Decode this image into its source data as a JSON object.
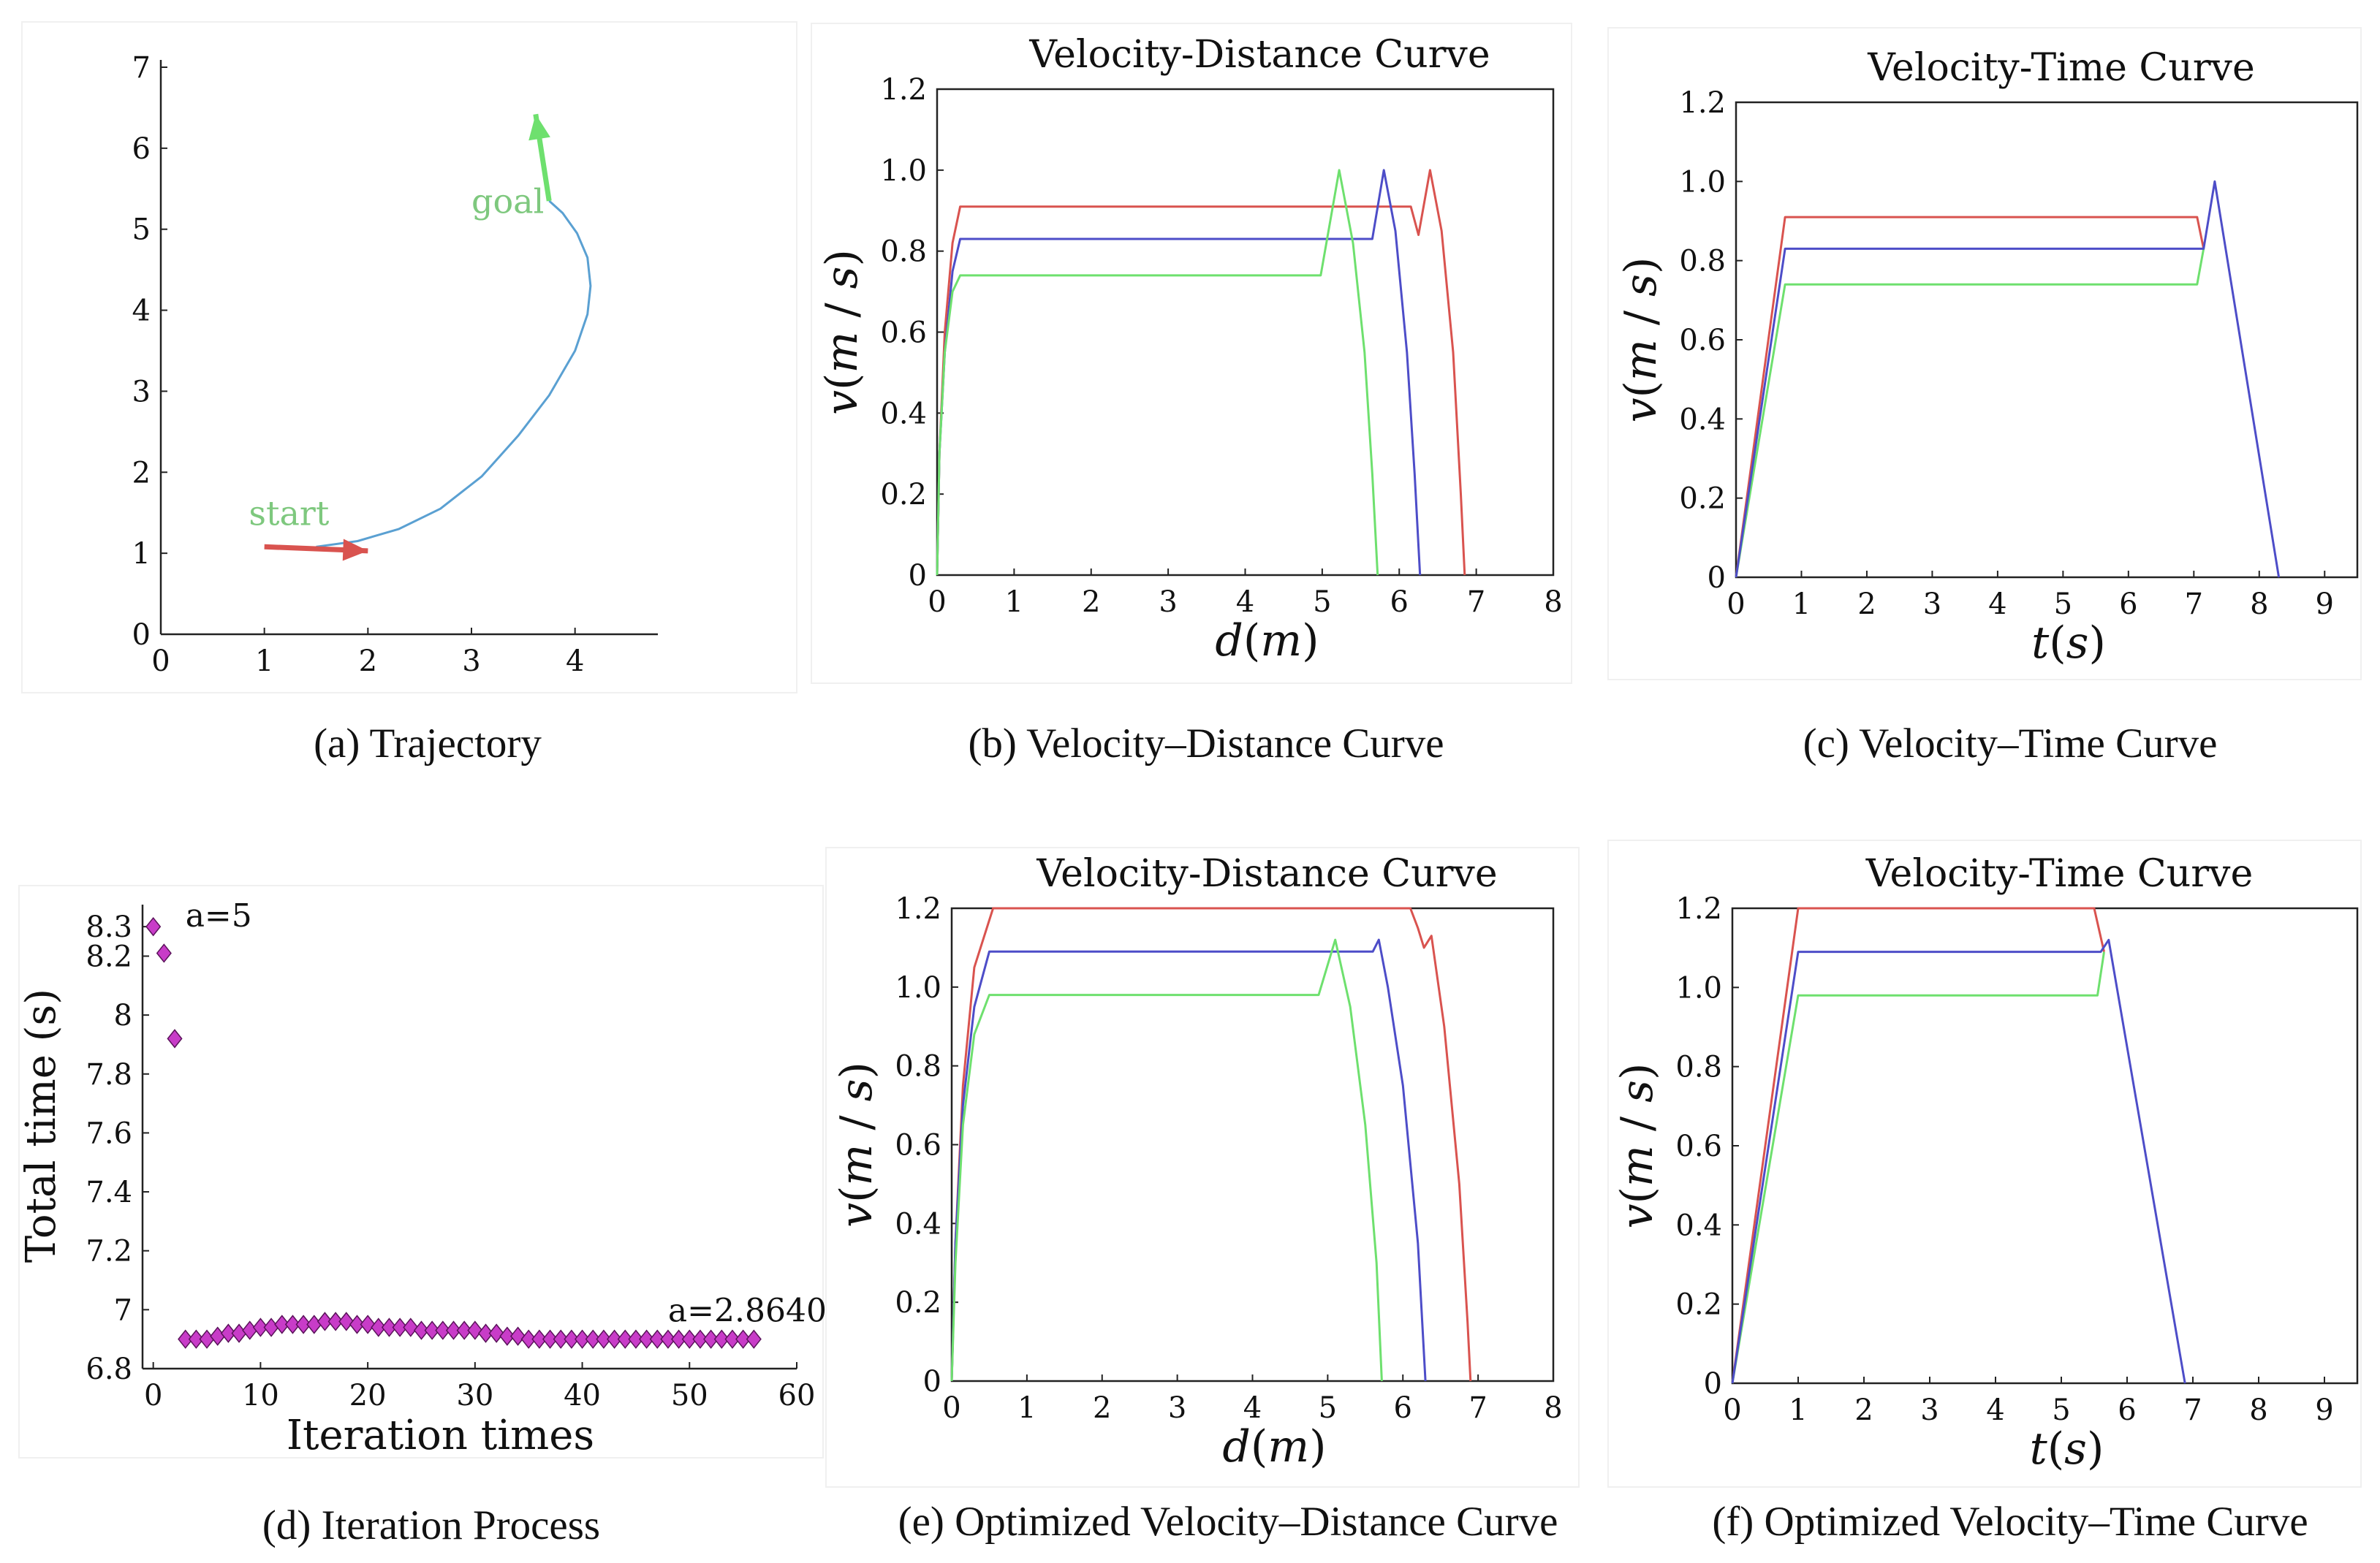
{
  "captions": {
    "a": "(a) Trajectory",
    "b": "(b) Velocity–Distance Curve",
    "c": "(c) Velocity–Time Curve",
    "d": "(d) Iteration Process",
    "e": "(e) Optimized Velocity–Distance Curve",
    "f": "(f) Optimized Velocity–Time Curve"
  },
  "colors": {
    "red": "#d9534f",
    "blue": "#4d4dc8",
    "green": "#6ee06e",
    "path": "#5aa0d2",
    "marker": "#c83cc8",
    "start": "#7ec87e"
  },
  "chart_data": [
    {
      "id": "a",
      "type": "line",
      "title": "",
      "xlim": [
        0,
        4.8
      ],
      "ylim": [
        0,
        7
      ],
      "xticks": [
        0,
        1,
        2,
        3,
        4
      ],
      "yticks": [
        0,
        1,
        2,
        3,
        4,
        5,
        6,
        7
      ],
      "xlabel": "",
      "ylabel": "",
      "annotations": [
        {
          "text": "start",
          "x": 0.85,
          "y": 1.35
        },
        {
          "text": "goal",
          "x": 3.0,
          "y": 5.2
        }
      ],
      "series": [
        {
          "name": "trajectory",
          "color": "path",
          "x": [
            1.5,
            1.9,
            2.3,
            2.7,
            3.1,
            3.45,
            3.75,
            4.0,
            4.12,
            4.15,
            4.12,
            4.02,
            3.88,
            3.75
          ],
          "y": [
            1.08,
            1.15,
            1.3,
            1.55,
            1.95,
            2.45,
            2.95,
            3.5,
            3.95,
            4.3,
            4.65,
            4.95,
            5.2,
            5.35
          ]
        }
      ],
      "arrows": [
        {
          "name": "start-arrow",
          "color": "red",
          "x": [
            1.0,
            2.0
          ],
          "y": [
            1.08,
            1.03
          ]
        },
        {
          "name": "goal-arrow",
          "color": "green",
          "x": [
            3.75,
            3.62
          ],
          "y": [
            5.35,
            6.42
          ]
        }
      ]
    },
    {
      "id": "b",
      "type": "line",
      "title": "Velocity-Distance Curve",
      "xlim": [
        0,
        8
      ],
      "ylim": [
        0,
        1.2
      ],
      "xticks": [
        0,
        1,
        2,
        3,
        4,
        5,
        6,
        7,
        8
      ],
      "yticks": [
        0,
        0.2,
        0.4,
        0.6,
        0.8,
        1.0,
        1.2
      ],
      "ytick_labels": [
        "0",
        "0.2",
        "0.4",
        "0.6",
        "0.8",
        "1.0",
        "1.2"
      ],
      "xlabel": "d(m)",
      "ylabel": "v(m / s)",
      "series": [
        {
          "name": "red",
          "color": "red",
          "x": [
            0,
            0.03,
            0.1,
            0.2,
            0.3,
            6.15,
            6.25,
            6.4,
            6.55,
            6.7,
            6.8,
            6.85
          ],
          "y": [
            0,
            0.3,
            0.6,
            0.82,
            0.91,
            0.91,
            0.84,
            1.0,
            0.85,
            0.55,
            0.2,
            0
          ]
        },
        {
          "name": "blue",
          "color": "blue",
          "x": [
            0,
            0.03,
            0.1,
            0.2,
            0.3,
            5.65,
            5.8,
            5.95,
            6.1,
            6.2,
            6.27
          ],
          "y": [
            0,
            0.3,
            0.55,
            0.75,
            0.83,
            0.83,
            1.0,
            0.85,
            0.55,
            0.25,
            0
          ]
        },
        {
          "name": "green",
          "color": "green",
          "x": [
            0,
            0.03,
            0.1,
            0.2,
            0.3,
            4.98,
            5.22,
            5.4,
            5.55,
            5.65,
            5.72
          ],
          "y": [
            0,
            0.3,
            0.55,
            0.7,
            0.74,
            0.74,
            1.0,
            0.82,
            0.55,
            0.25,
            0
          ]
        }
      ]
    },
    {
      "id": "c",
      "type": "line",
      "title": "Velocity-Time Curve",
      "xlim": [
        0,
        9.5
      ],
      "ylim": [
        0,
        1.2
      ],
      "xticks": [
        0,
        1,
        2,
        3,
        4,
        5,
        6,
        7,
        8,
        9
      ],
      "yticks": [
        0,
        0.2,
        0.4,
        0.6,
        0.8,
        1.0,
        1.2
      ],
      "ytick_labels": [
        "0",
        "0.2",
        "0.4",
        "0.6",
        "0.8",
        "1.0",
        "1.2"
      ],
      "xlabel": "t(s)",
      "ylabel": "v(m / s)",
      "series": [
        {
          "name": "red",
          "color": "red",
          "x": [
            0,
            0.75,
            7.05,
            7.15
          ],
          "y": [
            0,
            0.91,
            0.91,
            0.83
          ]
        },
        {
          "name": "green",
          "color": "green",
          "x": [
            0,
            0.75,
            7.05,
            7.15
          ],
          "y": [
            0,
            0.74,
            0.74,
            0.83
          ]
        },
        {
          "name": "blue",
          "color": "blue",
          "x": [
            0,
            0.75,
            7.15,
            7.32,
            8.3
          ],
          "y": [
            0,
            0.83,
            0.83,
            1.0,
            0
          ]
        }
      ]
    },
    {
      "id": "d",
      "type": "scatter",
      "title": "",
      "xlim": [
        -1,
        60
      ],
      "ylim": [
        6.8,
        8.35
      ],
      "xticks": [
        0,
        10,
        20,
        30,
        40,
        50,
        60
      ],
      "yticks": [
        6.8,
        7,
        7.2,
        7.4,
        7.6,
        7.8,
        8,
        8.2,
        8.3
      ],
      "ytick_labels": [
        "6.8",
        "7",
        "7.2",
        "7.4",
        "7.6",
        "7.8",
        "8",
        "8.2",
        "8.3"
      ],
      "xlabel": "Iteration times",
      "ylabel": "Total time (s)",
      "annotations": [
        {
          "text": "a=5",
          "x": 3,
          "y": 8.3
        },
        {
          "text": "a=2.8640",
          "x": 48,
          "y": 6.96
        }
      ],
      "x": [
        0,
        1,
        2,
        3,
        4,
        5,
        6,
        7,
        8,
        9,
        10,
        11,
        12,
        13,
        14,
        15,
        16,
        17,
        18,
        19,
        20,
        21,
        22,
        23,
        24,
        25,
        26,
        27,
        28,
        29,
        30,
        31,
        32,
        33,
        34,
        35,
        36,
        37,
        38,
        39,
        40,
        41,
        42,
        43,
        44,
        45,
        46,
        47,
        48,
        49,
        50,
        51,
        52,
        53,
        54,
        55,
        56
      ],
      "y": [
        8.3,
        8.21,
        7.92,
        6.9,
        6.9,
        6.9,
        6.91,
        6.92,
        6.92,
        6.93,
        6.94,
        6.94,
        6.95,
        6.95,
        6.95,
        6.95,
        6.96,
        6.96,
        6.96,
        6.95,
        6.95,
        6.94,
        6.94,
        6.94,
        6.94,
        6.93,
        6.93,
        6.93,
        6.93,
        6.93,
        6.93,
        6.92,
        6.92,
        6.91,
        6.91,
        6.9,
        6.9,
        6.9,
        6.9,
        6.9,
        6.9,
        6.9,
        6.9,
        6.9,
        6.9,
        6.9,
        6.9,
        6.9,
        6.9,
        6.9,
        6.9,
        6.9,
        6.9,
        6.9,
        6.9,
        6.9,
        6.9
      ]
    },
    {
      "id": "e",
      "type": "line",
      "title": "Velocity-Distance Curve",
      "xlim": [
        0,
        8
      ],
      "ylim": [
        0,
        1.2
      ],
      "xticks": [
        0,
        1,
        2,
        3,
        4,
        5,
        6,
        7,
        8
      ],
      "yticks": [
        0,
        0.2,
        0.4,
        0.6,
        0.8,
        1.0,
        1.2
      ],
      "ytick_labels": [
        "0",
        "0.2",
        "0.4",
        "0.6",
        "0.8",
        "1.0",
        "1.2"
      ],
      "xlabel": "d(m)",
      "ylabel": "v(m / s)",
      "series": [
        {
          "name": "red",
          "color": "red",
          "x": [
            0,
            0.05,
            0.15,
            0.3,
            0.55,
            6.1,
            6.2,
            6.28,
            6.38,
            6.55,
            6.75,
            6.86,
            6.9
          ],
          "y": [
            0,
            0.35,
            0.75,
            1.05,
            1.2,
            1.2,
            1.15,
            1.1,
            1.13,
            0.9,
            0.5,
            0.15,
            0
          ]
        },
        {
          "name": "blue",
          "color": "blue",
          "x": [
            0,
            0.05,
            0.15,
            0.3,
            0.5,
            5.6,
            5.68,
            5.8,
            6.0,
            6.2,
            6.3
          ],
          "y": [
            0,
            0.35,
            0.7,
            0.95,
            1.09,
            1.09,
            1.12,
            1.0,
            0.75,
            0.35,
            0
          ]
        },
        {
          "name": "green",
          "color": "green",
          "x": [
            0,
            0.05,
            0.15,
            0.3,
            0.5,
            4.88,
            5.1,
            5.3,
            5.5,
            5.65,
            5.72
          ],
          "y": [
            0,
            0.3,
            0.65,
            0.88,
            0.98,
            0.98,
            1.12,
            0.95,
            0.65,
            0.3,
            0
          ]
        }
      ]
    },
    {
      "id": "f",
      "type": "line",
      "title": "Velocity-Time Curve",
      "xlim": [
        0,
        9.5
      ],
      "ylim": [
        0,
        1.2
      ],
      "xticks": [
        0,
        1,
        2,
        3,
        4,
        5,
        6,
        7,
        8,
        9
      ],
      "yticks": [
        0,
        0.2,
        0.4,
        0.6,
        0.8,
        1.0,
        1.2
      ],
      "ytick_labels": [
        "0",
        "0.2",
        "0.4",
        "0.6",
        "0.8",
        "1.0",
        "1.2"
      ],
      "xlabel": "t(s)",
      "ylabel": "v(m / s)",
      "series": [
        {
          "name": "red",
          "color": "red",
          "x": [
            0,
            1.0,
            5.5,
            5.65
          ],
          "y": [
            0,
            1.2,
            1.2,
            1.09
          ]
        },
        {
          "name": "green",
          "color": "green",
          "x": [
            0,
            1.0,
            5.55,
            5.65
          ],
          "y": [
            0,
            0.98,
            0.98,
            1.09
          ]
        },
        {
          "name": "blue",
          "color": "blue",
          "x": [
            0,
            1.0,
            5.6,
            5.72,
            6.88
          ],
          "y": [
            0,
            1.09,
            1.09,
            1.12,
            0
          ]
        }
      ]
    }
  ]
}
